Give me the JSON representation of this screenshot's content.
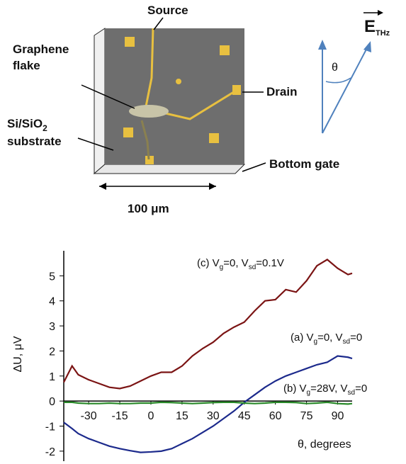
{
  "diagram": {
    "source": "Source",
    "graphene": [
      "Graphene",
      "flake"
    ],
    "substrate": [
      "Si/SiO",
      "2",
      "substrate"
    ],
    "drain": "Drain",
    "bottom_gate": "Bottom gate",
    "scale": "100 μm",
    "field": [
      "E",
      "THz"
    ],
    "angle": "θ"
  },
  "chart_data": {
    "type": "line",
    "y_label": "ΔU, μV",
    "x_label": "θ, degrees",
    "x": [
      -42,
      -38,
      -35,
      -30,
      -25,
      -20,
      -15,
      -10,
      -5,
      0,
      5,
      10,
      15,
      20,
      25,
      30,
      35,
      40,
      45,
      50,
      55,
      60,
      65,
      70,
      75,
      80,
      85,
      90,
      95,
      97
    ],
    "series": [
      {
        "color": "#7b1414",
        "label_parts": [
          "(c) V",
          "g",
          "=0, V",
          "sd",
          "=0.1V"
        ],
        "values": [
          0.75,
          1.4,
          1.05,
          0.85,
          0.7,
          0.55,
          0.5,
          0.6,
          0.8,
          1.0,
          1.15,
          1.15,
          1.4,
          1.8,
          2.1,
          2.35,
          2.7,
          2.95,
          3.15,
          3.6,
          4.0,
          4.05,
          4.45,
          4.35,
          4.8,
          5.4,
          5.65,
          5.3,
          5.05,
          5.1
        ]
      },
      {
        "color": "#1c2a8c",
        "label_parts": [
          "(a) V",
          "g",
          "=0, V",
          "sd",
          "=0"
        ],
        "values": [
          -0.85,
          -1.1,
          -1.3,
          -1.5,
          -1.65,
          -1.8,
          -1.9,
          -1.98,
          -2.05,
          -2.03,
          -2.0,
          -1.9,
          -1.7,
          -1.5,
          -1.25,
          -1.0,
          -0.7,
          -0.4,
          -0.05,
          0.25,
          0.55,
          0.8,
          1.0,
          1.15,
          1.3,
          1.45,
          1.55,
          1.8,
          1.75,
          1.7
        ]
      },
      {
        "color": "#2a8a2a",
        "label_parts": [
          "(b) V",
          "g",
          "=28V, V",
          "sd",
          "=0"
        ],
        "values": [
          -0.05,
          -0.05,
          -0.08,
          -0.1,
          -0.1,
          -0.08,
          -0.1,
          -0.1,
          -0.08,
          -0.08,
          -0.05,
          -0.06,
          -0.08,
          -0.1,
          -0.08,
          -0.06,
          -0.05,
          -0.05,
          -0.08,
          -0.1,
          -0.08,
          -0.05,
          -0.05,
          -0.06,
          -0.1,
          -0.08,
          -0.05,
          -0.1,
          -0.12,
          -0.1
        ]
      }
    ],
    "xlim": [
      -42,
      97
    ],
    "xticks": [
      -30,
      -15,
      0,
      15,
      30,
      45,
      60,
      75,
      90
    ],
    "ylim": [
      -2.4,
      6
    ],
    "yticks": [
      -2,
      -1,
      0,
      1,
      2,
      3,
      4,
      5
    ]
  }
}
